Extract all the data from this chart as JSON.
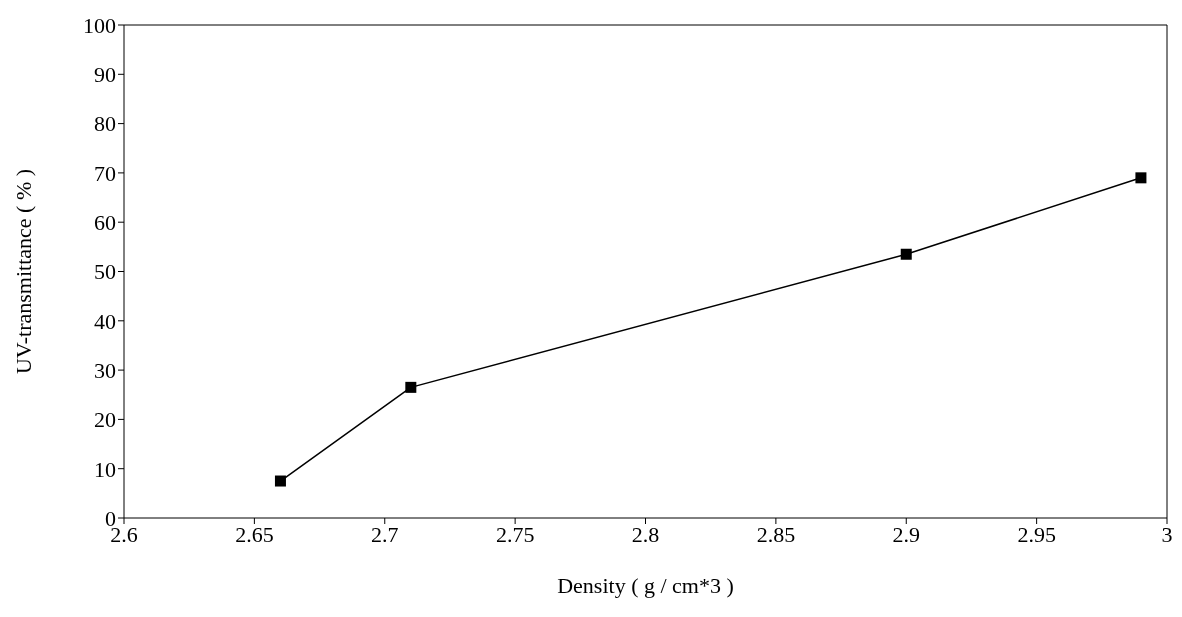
{
  "chart_data": {
    "type": "line",
    "xlabel": "Density ( g / cm*3 )",
    "ylabel": "UV-transmittance  ( % )",
    "x": [
      2.66,
      2.71,
      2.9,
      2.99
    ],
    "series": [
      {
        "color": "#000000",
        "values": [
          7.5,
          26.5,
          53.5,
          69
        ]
      }
    ],
    "xlim": [
      2.6,
      3
    ],
    "xticks": [
      2.6,
      2.65,
      2.7,
      2.75,
      2.8,
      2.85,
      2.9,
      2.95,
      3
    ],
    "ylim": [
      0,
      100
    ],
    "yticks": [
      0,
      10,
      20,
      30,
      40,
      50,
      60,
      70,
      80,
      90,
      100
    ],
    "grid": false,
    "legend": false,
    "marker": "square",
    "line_style": "solid"
  }
}
